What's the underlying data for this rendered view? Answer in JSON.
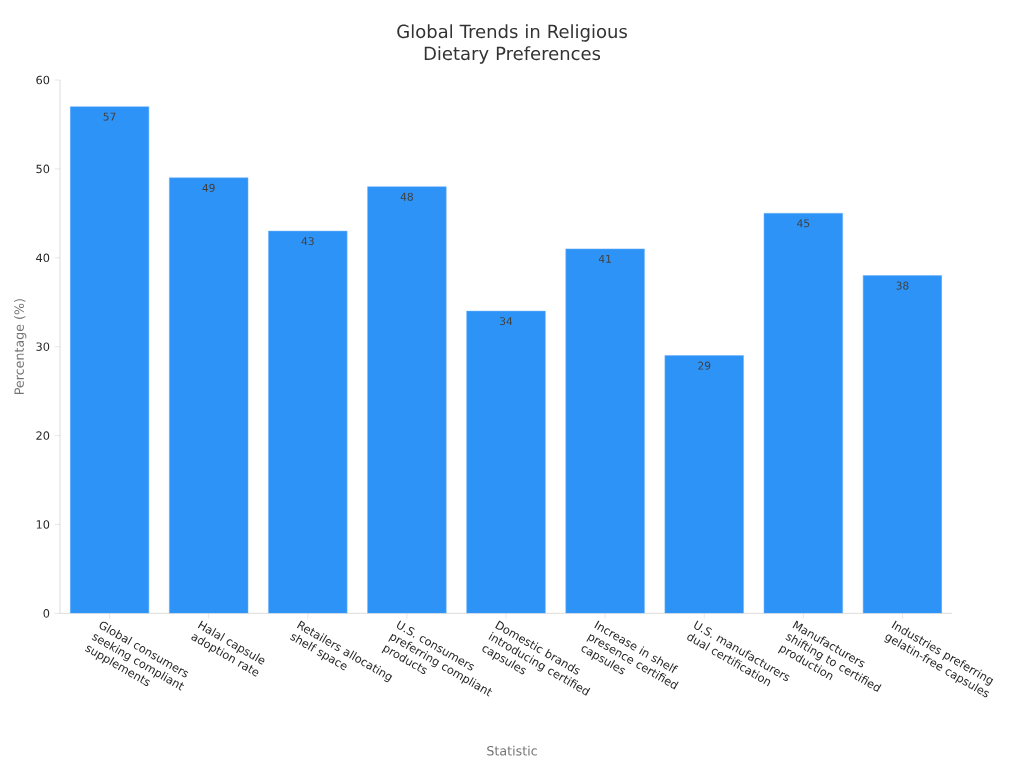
{
  "chart_data": {
    "type": "bar",
    "title": "Global Trends in Religious Dietary Preferences",
    "xlabel": "Statistic",
    "ylabel": "Percentage (%)",
    "categories": [
      "Global consumers seeking compliant supplements",
      "Halal capsule adoption rate",
      "Retailers allocating shelf space",
      "U.S. consumers preferring compliant products",
      "Domestic brands introducing certified capsules",
      "Increase in shelf presence certified capsules",
      "U.S. manufacturers dual certification",
      "Manufacturers shifting to certified production",
      "Industries preferring gelatin-free capsules"
    ],
    "values": [
      57,
      49,
      43,
      48,
      34,
      41,
      29,
      45,
      38
    ],
    "color": "#2e93f7",
    "ylim": [
      0,
      60
    ],
    "yticks": [
      0,
      10,
      20,
      30,
      40,
      50,
      60
    ],
    "data_labels": true
  }
}
